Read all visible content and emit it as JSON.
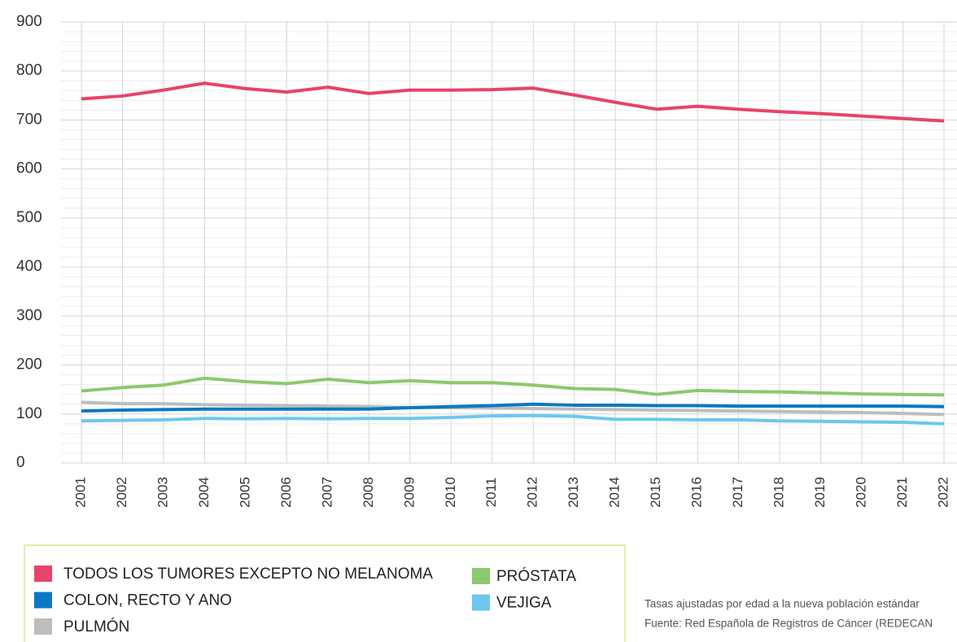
{
  "chart_data": {
    "type": "line",
    "x": [
      2001,
      2002,
      2003,
      2004,
      2005,
      2006,
      2007,
      2008,
      2009,
      2010,
      2011,
      2012,
      2013,
      2014,
      2015,
      2016,
      2017,
      2018,
      2019,
      2020,
      2021,
      2022
    ],
    "series": [
      {
        "name": "TODOS LOS TUMORES EXCEPTO NO MELANOMA",
        "color": "#e8436a",
        "values": [
          743,
          749,
          761,
          775,
          764,
          757,
          767,
          754,
          761,
          761,
          762,
          765,
          751,
          736,
          722,
          728,
          722,
          717,
          713,
          708,
          703,
          698
        ]
      },
      {
        "name": "COLON, RECTO Y ANO",
        "color": "#0a78c4",
        "values": [
          106,
          108,
          109,
          110,
          110,
          110,
          110,
          110,
          113,
          115,
          117,
          120,
          118,
          118,
          117,
          117,
          116,
          116,
          116,
          116,
          116,
          115
        ]
      },
      {
        "name": "PULMÓN",
        "color": "#bdbdbd",
        "values": [
          124,
          121,
          121,
          119,
          118,
          117,
          116,
          115,
          113,
          113,
          112,
          111,
          110,
          109,
          108,
          107,
          106,
          105,
          104,
          103,
          101,
          99
        ]
      },
      {
        "name": "PRÓSTATA",
        "color": "#8cc96c",
        "values": [
          147,
          154,
          159,
          173,
          166,
          162,
          171,
          164,
          168,
          164,
          164,
          159,
          152,
          150,
          140,
          148,
          146,
          145,
          143,
          141,
          140,
          139
        ]
      },
      {
        "name": "VEJIGA",
        "color": "#6cc7ee",
        "values": [
          86,
          87,
          88,
          91,
          90,
          91,
          90,
          91,
          91,
          93,
          96,
          97,
          95,
          89,
          89,
          88,
          88,
          86,
          85,
          84,
          83,
          80
        ]
      }
    ],
    "ylim": [
      0,
      900
    ],
    "yticks": [
      0,
      100,
      200,
      300,
      400,
      500,
      600,
      700,
      800,
      900
    ],
    "grid": true,
    "notes": [
      "Tasas ajustadas por edad a la nueva población estándar",
      "Fuente: Red Española de Registros de Cáncer (REDECAN"
    ]
  }
}
